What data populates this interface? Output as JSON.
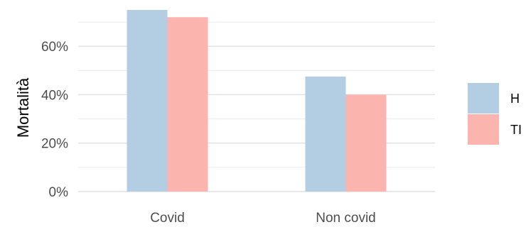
{
  "chart_data": {
    "type": "bar",
    "title": "",
    "xlabel": "",
    "ylabel": "Mortalità",
    "categories": [
      "Covid",
      "Non covid"
    ],
    "series": [
      {
        "name": "H",
        "values": [
          75,
          47.5
        ],
        "color": "#b3cde3"
      },
      {
        "name": "TI",
        "values": [
          72,
          40
        ],
        "color": "#fbb4ae"
      }
    ],
    "ylim": [
      0,
      75
    ],
    "yticks": [
      0,
      20,
      40,
      60
    ],
    "ytick_labels": [
      "0%",
      "20%",
      "40%",
      "60%"
    ],
    "grid": true,
    "legend_position": "right"
  }
}
